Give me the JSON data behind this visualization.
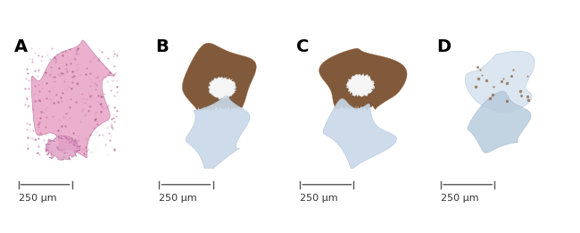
{
  "panels": [
    "A",
    "B",
    "C",
    "D"
  ],
  "background_color": "#ffffff",
  "label_fontsize": 14,
  "label_fontweight": "bold",
  "scalebar_text": "250 μm",
  "scalebar_fontsize": 8,
  "panel_colors": {
    "A": {
      "primary": "#e8a8c8",
      "secondary": "#c080a8",
      "dots": [
        "#c060a0",
        "#b04880",
        "#d090b8",
        "#904070"
      ]
    },
    "B": {
      "primary": "#7a5030",
      "secondary": "#9a6840",
      "tertiary": "#c8d8e8"
    },
    "C": {
      "primary": "#7a5030",
      "secondary": "#9a6840",
      "tertiary": "#c8d8e8"
    },
    "D": {
      "primary": "#c8d8e8",
      "secondary": "#b0c4d8",
      "tertiary": "#d8e4f0"
    }
  },
  "figsize": [
    6.5,
    2.61
  ],
  "dpi": 100
}
